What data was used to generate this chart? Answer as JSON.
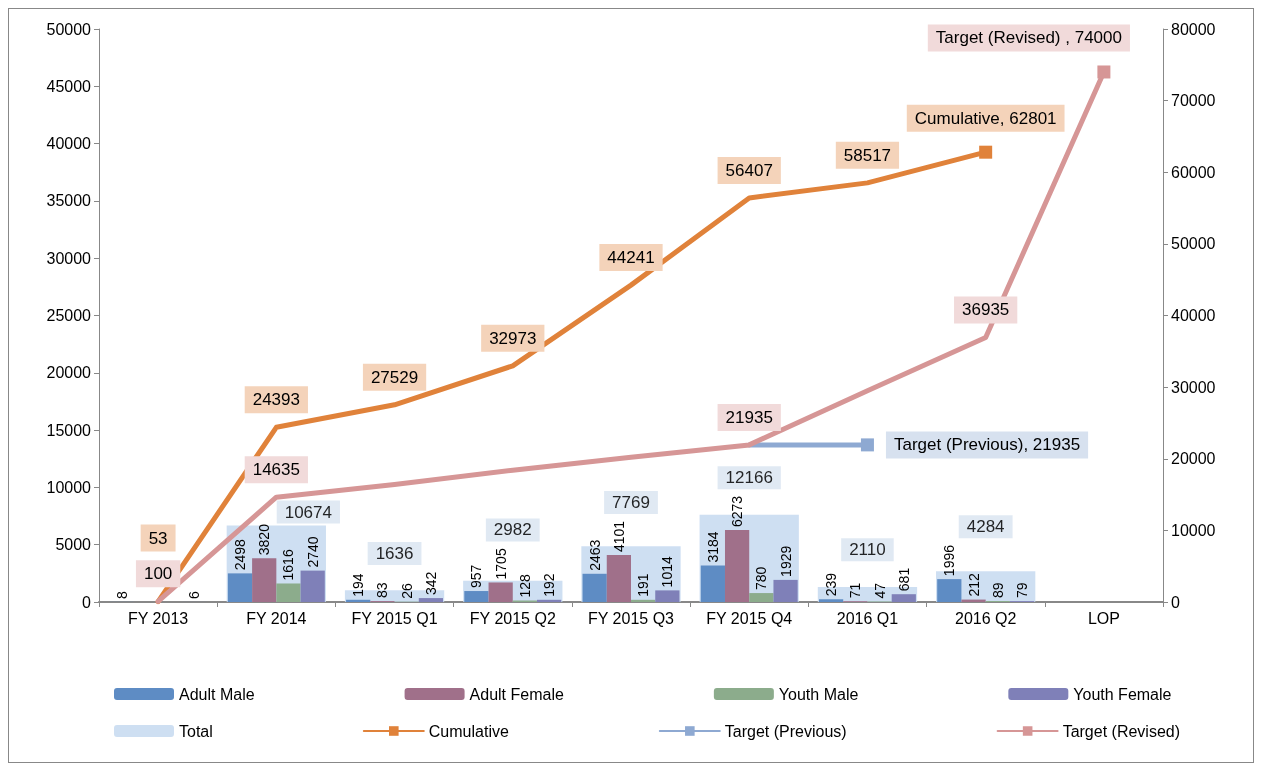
{
  "chart_data": {
    "type": "bar",
    "categories": [
      "FY 2013",
      "FY 2014",
      "FY 2015 Q1",
      "FY 2015 Q2",
      "FY 2015 Q3",
      "FY 2015 Q4",
      "2016 Q1",
      "2016 Q2",
      "LOP"
    ],
    "ylim": [
      0,
      50000
    ],
    "yticks": [
      0,
      5000,
      10000,
      15000,
      20000,
      25000,
      30000,
      35000,
      40000,
      45000,
      50000
    ],
    "y2lim": [
      0,
      80000
    ],
    "y2ticks": [
      0,
      10000,
      20000,
      30000,
      40000,
      50000,
      60000,
      70000,
      80000
    ],
    "grid": false,
    "legend": "bottom",
    "series": [
      {
        "name": "Adult Male",
        "color": "#5e8cc4",
        "values": [
          8,
          2498,
          194,
          957,
          2463,
          3184,
          239,
          1996,
          null
        ],
        "value_labels": [
          "8",
          "2498",
          "194",
          "957",
          "2463",
          "3184",
          "239",
          "1996",
          null
        ]
      },
      {
        "name": "Adult Female",
        "color": "#a0708a",
        "values": [
          null,
          3820,
          83,
          1705,
          4101,
          6273,
          71,
          212,
          null
        ],
        "value_labels": [
          null,
          "3820",
          "83",
          "1705",
          "4101",
          "6273",
          "71",
          "212",
          null
        ]
      },
      {
        "name": "Youth Male",
        "color": "#8cac8c",
        "values": [
          null,
          1616,
          26,
          128,
          191,
          780,
          47,
          89,
          null
        ],
        "value_labels": [
          null,
          "1616",
          "26",
          "128",
          "191",
          "780",
          "47",
          "89",
          null
        ]
      },
      {
        "name": "Youth Female",
        "color": "#7f80b8",
        "values": [
          6,
          2740,
          342,
          192,
          1014,
          1929,
          681,
          79,
          null
        ],
        "value_labels": [
          "6",
          "2740",
          "342",
          "192",
          "1014",
          "1929",
          "681",
          "79",
          null
        ]
      },
      {
        "name": "Total",
        "color": "#c6d9f0",
        "axis": "y2",
        "values": [
          null,
          10674,
          1636,
          2982,
          7769,
          12166,
          2110,
          4284,
          null
        ],
        "value_labels": [
          null,
          "10674",
          "1636",
          "2982",
          "7769",
          "12166",
          "2110",
          "4284",
          null
        ]
      },
      {
        "name": "Cumulative",
        "type": "line",
        "axis": "y2",
        "color": "#e0823a",
        "values": [
          53,
          24393,
          27529,
          32973,
          44241,
          56407,
          58517,
          62801,
          null
        ],
        "value_labels": [
          "53",
          "24393",
          "27529",
          "32973",
          "44241",
          "56407",
          "58517",
          "Cumulative, 62801",
          null
        ]
      },
      {
        "name": "Target (Previous)",
        "type": "line",
        "axis": "y2",
        "color": "#8ea9d2",
        "values": [
          null,
          null,
          null,
          null,
          null,
          21935,
          21935,
          null,
          null
        ],
        "value_labels": [
          null,
          null,
          null,
          null,
          null,
          null,
          "Target (Previous), 21935",
          null,
          null
        ]
      },
      {
        "name": "Target (Revised)",
        "type": "line",
        "axis": "y2",
        "color": "#d69696",
        "values": [
          100,
          14635,
          16400,
          18400,
          20200,
          21935,
          29500,
          36935,
          74000
        ],
        "value_labels": [
          "100",
          "14635",
          null,
          null,
          null,
          "21935",
          null,
          "36935",
          "Target (Revised) , 74000"
        ]
      }
    ]
  }
}
